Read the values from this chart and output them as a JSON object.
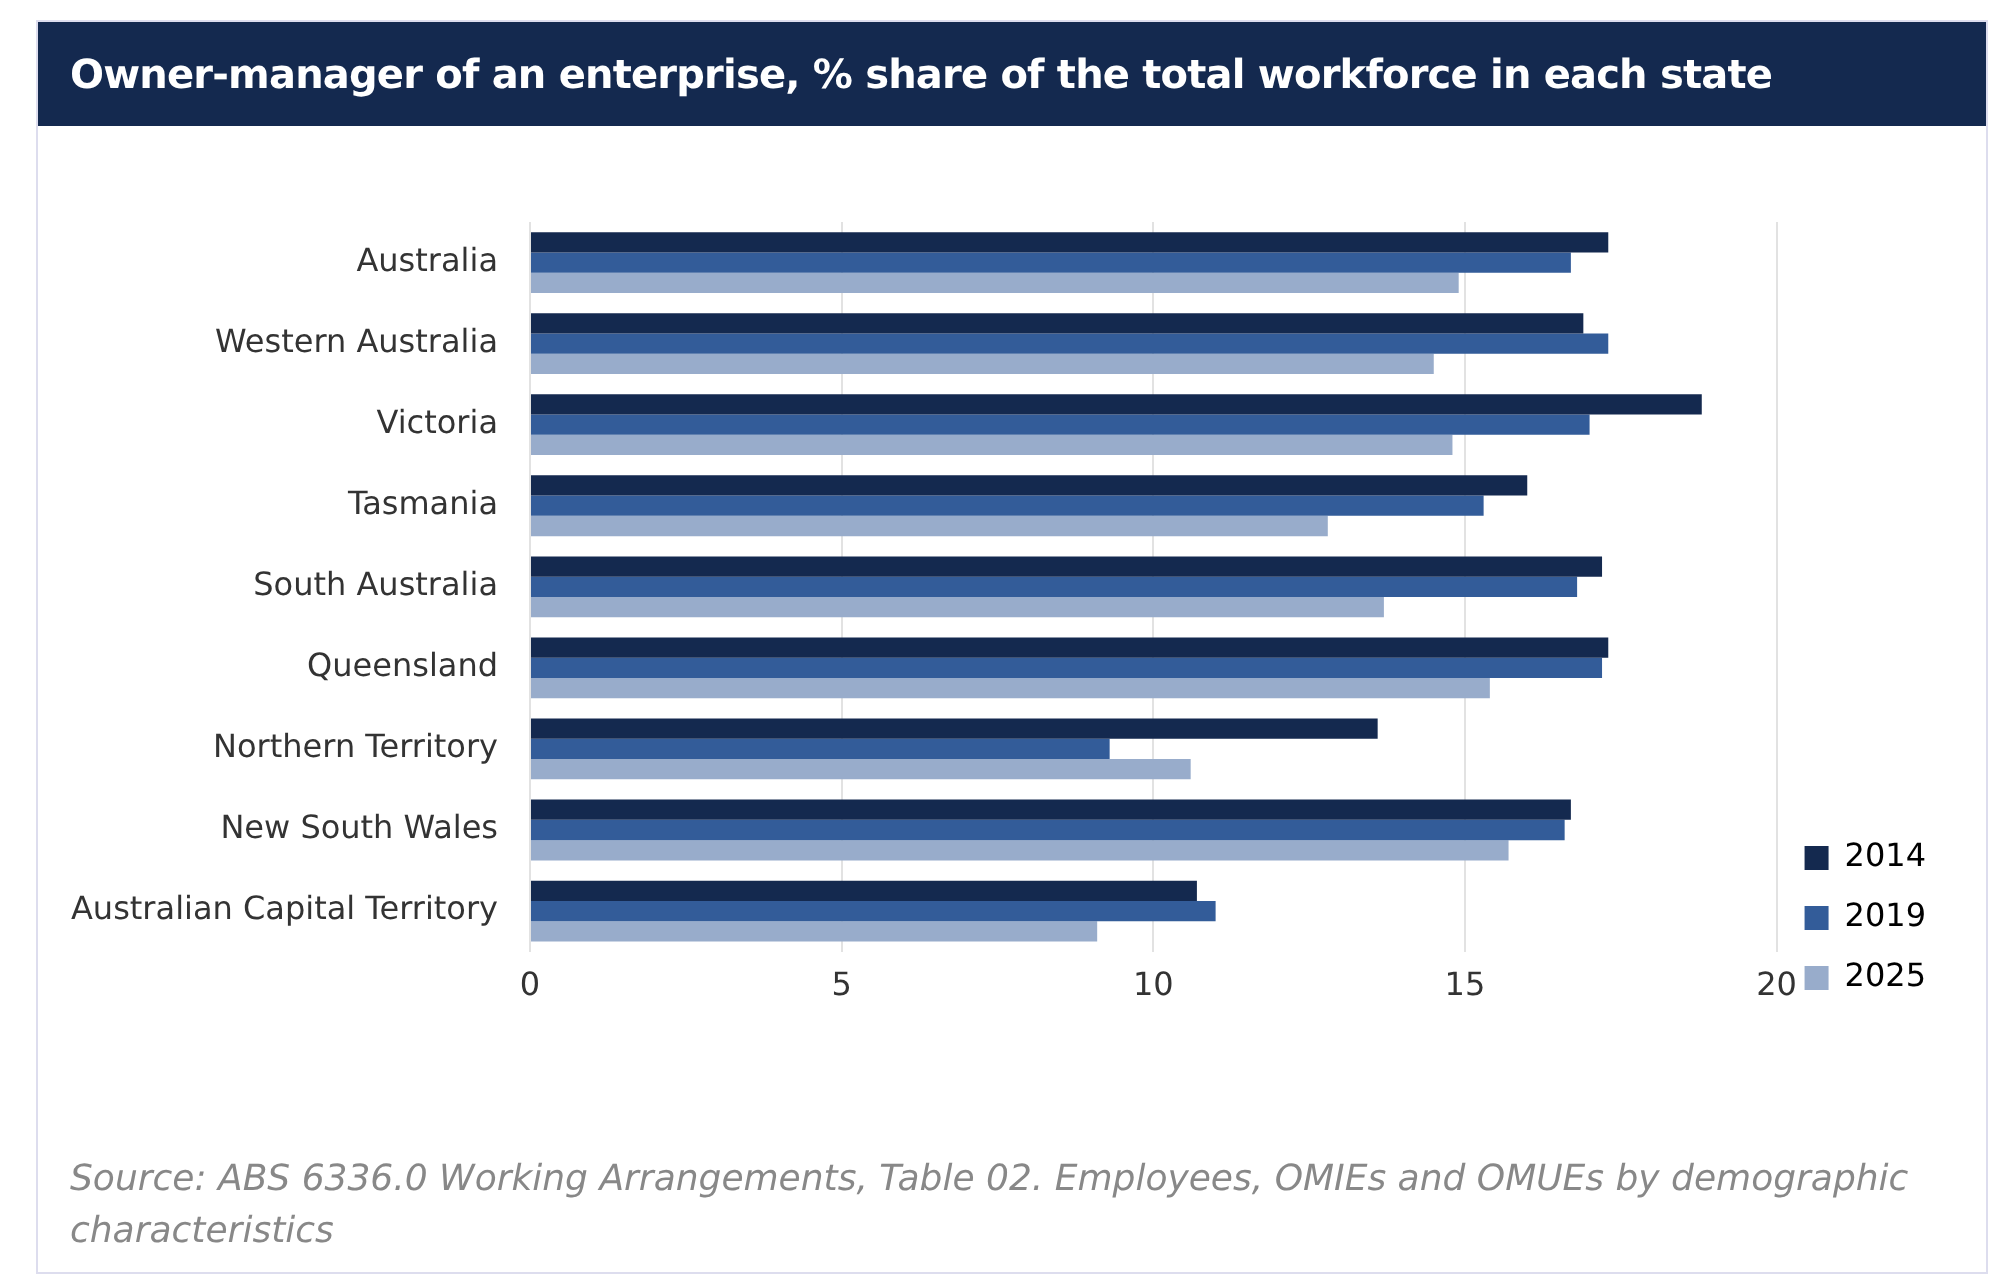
{
  "chart_data": {
    "type": "bar",
    "orientation": "horizontal",
    "title": "Owner-manager of an enterprise, % share of the total workforce in each state",
    "categories": [
      "Australia",
      "Western Australia",
      "Victoria",
      "Tasmania",
      "South Australia",
      "Queensland",
      "Northern Territory",
      "New South Wales",
      "Australian Capital Territory"
    ],
    "series": [
      {
        "name": "2014",
        "color": "#14294f",
        "values": [
          17.3,
          16.9,
          18.8,
          16.0,
          17.2,
          17.3,
          13.6,
          16.7,
          10.7
        ]
      },
      {
        "name": "2019",
        "color": "#335c99",
        "values": [
          16.7,
          17.3,
          17.0,
          15.3,
          16.8,
          17.2,
          9.3,
          16.6,
          11.0
        ]
      },
      {
        "name": "2025",
        "color": "#98accb",
        "values": [
          14.9,
          14.5,
          14.8,
          12.8,
          13.7,
          15.4,
          10.6,
          15.7,
          9.1
        ]
      }
    ],
    "xlim": [
      0,
      20
    ],
    "xticks": [
      0,
      5,
      10,
      15,
      20
    ],
    "grid": "x",
    "legend": "bottom right",
    "annotations": [
      "Source: ABS 6336.0 Working Arrangements, Table 02. Employees, OMIEs and OMUEs by demographic characteristics"
    ]
  }
}
